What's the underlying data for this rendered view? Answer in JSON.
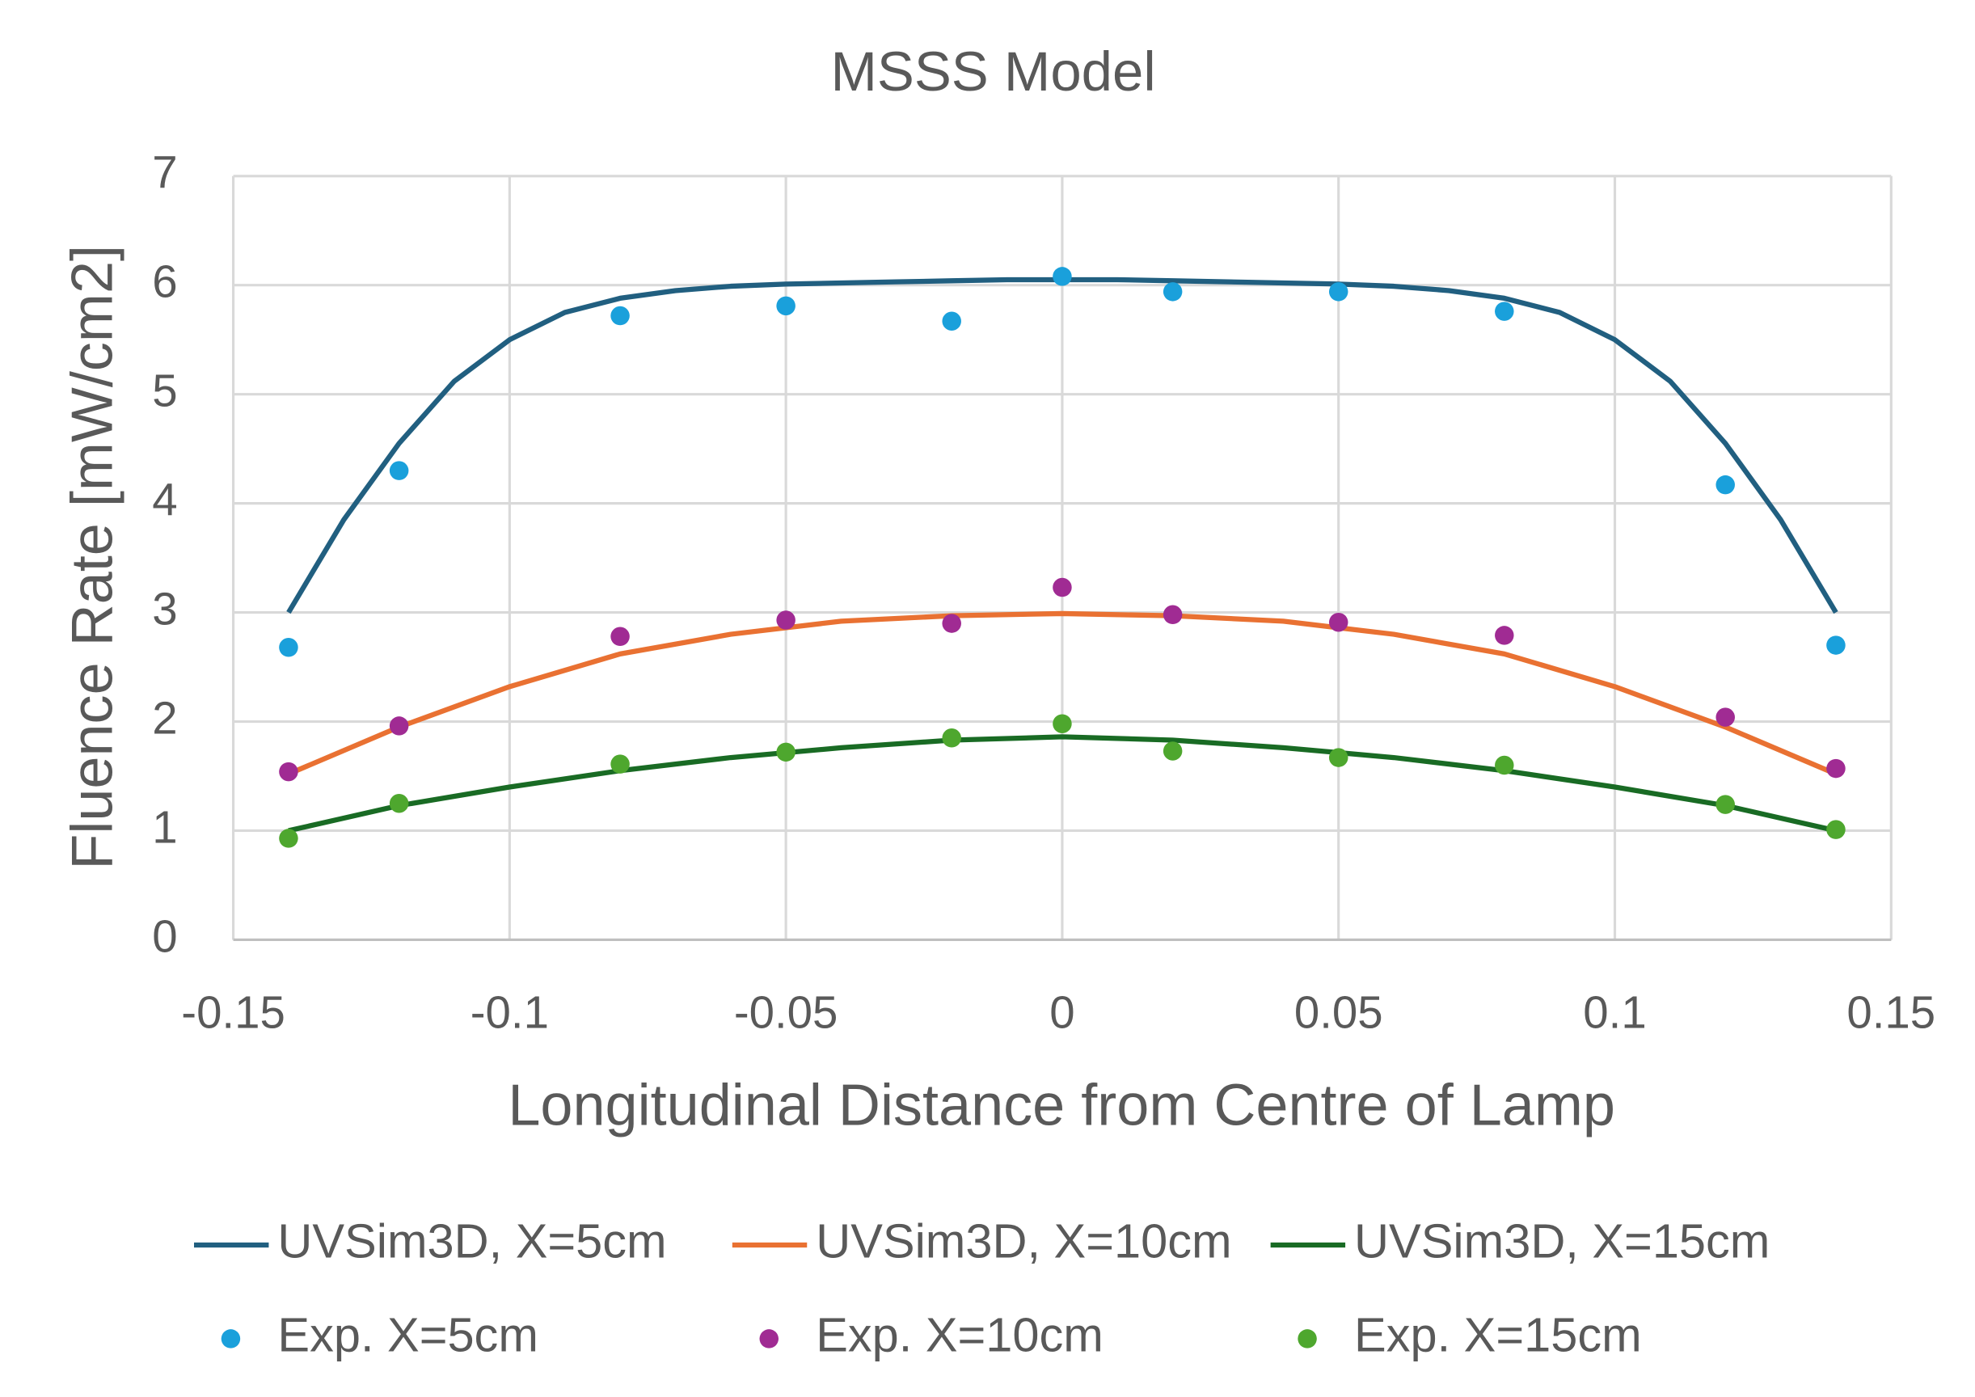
{
  "chart_data": {
    "type": "scatter",
    "title": "MSSS Model",
    "xlabel": "Longitudinal Distance from Centre of Lamp",
    "ylabel": "Fluence Rate [mW/cm2]",
    "xlim": [
      -0.15,
      0.15
    ],
    "xticks": [
      -0.15,
      -0.1,
      -0.05,
      0,
      0.05,
      0.1,
      0.15
    ],
    "ylim": [
      0,
      7
    ],
    "yticks": [
      0,
      1,
      2,
      3,
      4,
      5,
      6,
      7
    ],
    "grid": true,
    "series": [
      {
        "name": "UVSim3D, X=5cm",
        "color": "#215f80",
        "style": "line",
        "x": [
          -0.14,
          -0.13,
          -0.12,
          -0.11,
          -0.1,
          -0.09,
          -0.08,
          -0.07,
          -0.06,
          -0.05,
          -0.04,
          -0.03,
          -0.02,
          -0.01,
          0,
          0.01,
          0.02,
          0.03,
          0.04,
          0.05,
          0.06,
          0.07,
          0.08,
          0.09,
          0.1,
          0.11,
          0.12,
          0.13,
          0.14
        ],
        "values": [
          3.0,
          3.85,
          4.55,
          5.12,
          5.5,
          5.75,
          5.88,
          5.95,
          5.99,
          6.01,
          6.02,
          6.03,
          6.04,
          6.05,
          6.05,
          6.05,
          6.04,
          6.03,
          6.02,
          6.01,
          5.99,
          5.95,
          5.88,
          5.75,
          5.5,
          5.12,
          4.55,
          3.85,
          3.0
        ]
      },
      {
        "name": "UVSim3D, X=10cm",
        "color": "#e97132",
        "style": "line",
        "x": [
          -0.14,
          -0.12,
          -0.1,
          -0.08,
          -0.06,
          -0.04,
          -0.02,
          0,
          0.02,
          0.04,
          0.06,
          0.08,
          0.1,
          0.12,
          0.14
        ],
        "values": [
          1.52,
          1.95,
          2.32,
          2.62,
          2.8,
          2.92,
          2.97,
          2.99,
          2.97,
          2.92,
          2.8,
          2.62,
          2.32,
          1.95,
          1.52
        ]
      },
      {
        "name": "UVSim3D, X=15cm",
        "color": "#196b24",
        "style": "line",
        "x": [
          -0.14,
          -0.12,
          -0.1,
          -0.08,
          -0.06,
          -0.04,
          -0.02,
          0,
          0.02,
          0.04,
          0.06,
          0.08,
          0.1,
          0.12,
          0.14
        ],
        "values": [
          1.0,
          1.23,
          1.4,
          1.55,
          1.67,
          1.76,
          1.83,
          1.86,
          1.83,
          1.76,
          1.67,
          1.55,
          1.4,
          1.23,
          1.0
        ]
      },
      {
        "name": "Exp. X=5cm",
        "color": "#1aa0db",
        "style": "markers",
        "x": [
          -0.14,
          -0.12,
          -0.08,
          -0.05,
          -0.02,
          0,
          0.02,
          0.05,
          0.08,
          0.12,
          0.14
        ],
        "values": [
          2.68,
          4.3,
          5.72,
          5.81,
          5.67,
          6.08,
          5.94,
          5.94,
          5.76,
          4.17,
          2.7
        ]
      },
      {
        "name": "Exp. X=10cm",
        "color": "#a02b93",
        "style": "markers",
        "x": [
          -0.14,
          -0.12,
          -0.08,
          -0.05,
          -0.02,
          0,
          0.02,
          0.05,
          0.08,
          0.12,
          0.14
        ],
        "values": [
          1.54,
          1.96,
          2.78,
          2.93,
          2.9,
          3.23,
          2.98,
          2.91,
          2.79,
          2.04,
          1.57
        ]
      },
      {
        "name": "Exp. X=15cm",
        "color": "#4ea72e",
        "style": "markers",
        "x": [
          -0.14,
          -0.12,
          -0.08,
          -0.05,
          -0.02,
          0,
          0.02,
          0.05,
          0.08,
          0.12,
          0.14
        ],
        "values": [
          0.93,
          1.25,
          1.61,
          1.72,
          1.85,
          1.98,
          1.73,
          1.67,
          1.6,
          1.24,
          1.01
        ]
      }
    ]
  }
}
